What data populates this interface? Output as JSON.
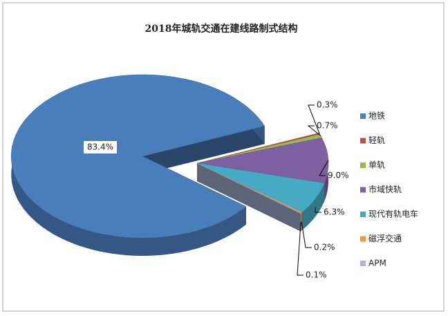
{
  "chart_data": {
    "type": "pie",
    "title": "2018年城轨交通在建线路制式结构",
    "categories": [
      "地铁",
      "轻轨",
      "单轨",
      "市域快轨",
      "现代有轨电车",
      "磁浮交通",
      "APM"
    ],
    "values": [
      83.4,
      0.3,
      0.7,
      9.0,
      6.3,
      0.2,
      0.1
    ],
    "value_labels": [
      "83.4%",
      "0.3%",
      "0.7%",
      "9.0%",
      "6.3%",
      "0.2%",
      "0.1%"
    ],
    "colors": [
      "#4a7ebb",
      "#be4b48",
      "#98b954",
      "#7d60a0",
      "#46aac5",
      "#f79646",
      "#a5b8d9"
    ],
    "legend": "right"
  }
}
